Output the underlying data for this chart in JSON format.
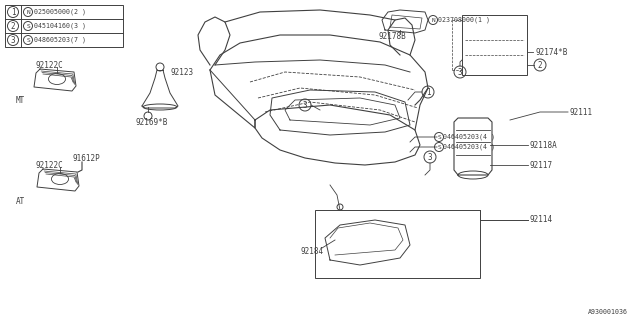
{
  "bg_color": "#ffffff",
  "line_color": "#404040",
  "title": "A930001036",
  "legend_items": [
    {
      "num": "1",
      "prefix": "N",
      "code": "025005000",
      "qty": "2"
    },
    {
      "num": "2",
      "prefix": "S",
      "code": "045104160",
      "qty": "3"
    },
    {
      "num": "3",
      "prefix": "S",
      "code": "048605203",
      "qty": "7"
    }
  ],
  "fs_small": 5.5,
  "fs_tiny": 4.8
}
